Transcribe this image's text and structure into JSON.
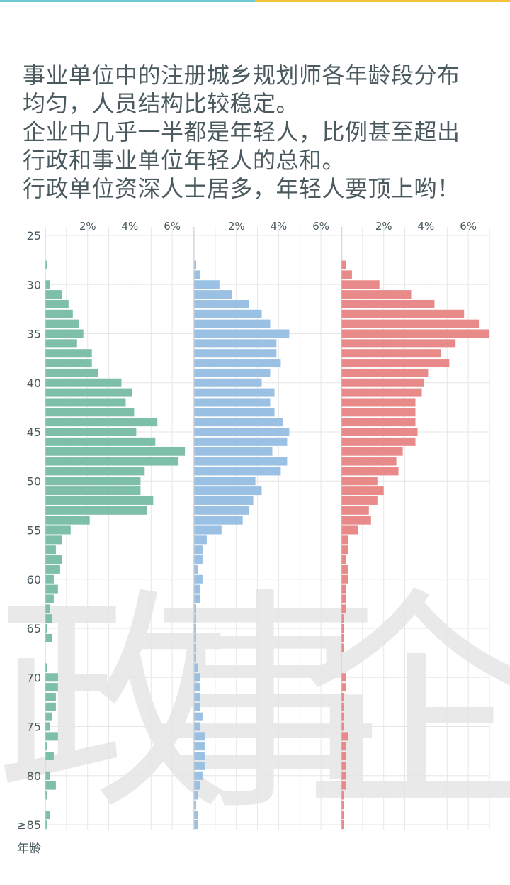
{
  "caption": {
    "lines": [
      "事业单位中的注册城乡规划师各年龄段分布",
      "均匀，人员结构比较稳定。",
      "企业中几乎一半都是年轻人，比例甚至超出",
      "行政和事业单位年轻人的总和。",
      "行政单位资深人士居多，年轻人要顶上哟！"
    ]
  },
  "colors": {
    "top_left": "#6ec9d4",
    "top_right": "#f2c23a",
    "text": "#4a5a5e",
    "grid": "#e6e6e6"
  },
  "chart_data": {
    "type": "bar",
    "orientation": "horizontal",
    "ylabel": "年龄",
    "y_ticks": [
      "25",
      "30",
      "35",
      "40",
      "45",
      "50",
      "55",
      "60",
      "65",
      "70",
      "75",
      "80",
      "≥85"
    ],
    "x_ticks": [
      "2%",
      "4%",
      "6%"
    ],
    "xlim": [
      0,
      7
    ],
    "ages": [
      28,
      29,
      30,
      31,
      32,
      33,
      34,
      35,
      36,
      37,
      38,
      39,
      40,
      41,
      42,
      43,
      44,
      45,
      46,
      47,
      48,
      49,
      50,
      51,
      52,
      53,
      54,
      55,
      56,
      57,
      58,
      59,
      60,
      61,
      62,
      63,
      64,
      65,
      66,
      67,
      68,
      69,
      70,
      71,
      72,
      73,
      74,
      75,
      76,
      77,
      78,
      79,
      80,
      81,
      82,
      83,
      84,
      85
    ],
    "grid": true,
    "watermarks": [
      "政",
      "事",
      "企"
    ],
    "series": [
      {
        "color": "#7dbfa8",
        "values": [
          0.1,
          0.0,
          0.2,
          0.8,
          1.1,
          1.3,
          1.6,
          1.8,
          1.5,
          2.2,
          2.2,
          2.5,
          3.6,
          4.1,
          3.8,
          4.2,
          5.3,
          4.3,
          5.2,
          6.6,
          6.3,
          4.7,
          4.5,
          4.5,
          5.1,
          4.8,
          2.1,
          1.2,
          0.8,
          0.5,
          0.8,
          0.7,
          0.4,
          0.6,
          0.4,
          0.2,
          0.3,
          0.1,
          0.3,
          0.0,
          0.0,
          0.1,
          0.6,
          0.6,
          0.5,
          0.5,
          0.3,
          0.2,
          0.6,
          0.1,
          0.4,
          0.0,
          0.2,
          0.5,
          0.1,
          0.0,
          0.2,
          0.1
        ]
      },
      {
        "color": "#9ac0e3",
        "values": [
          0.1,
          0.3,
          1.2,
          1.8,
          2.6,
          3.2,
          3.6,
          4.5,
          3.9,
          3.9,
          4.1,
          3.6,
          3.2,
          3.8,
          3.6,
          3.8,
          4.2,
          4.5,
          4.4,
          3.7,
          4.4,
          4.1,
          2.9,
          3.2,
          2.8,
          2.6,
          2.3,
          1.3,
          0.6,
          0.4,
          0.4,
          0.2,
          0.4,
          0.3,
          0.3,
          0.1,
          0.1,
          0.1,
          0.1,
          0.1,
          0.1,
          0.2,
          0.3,
          0.3,
          0.3,
          0.3,
          0.4,
          0.3,
          0.5,
          0.5,
          0.5,
          0.5,
          0.4,
          0.3,
          0.2,
          0.1,
          0.2,
          0.2
        ]
      },
      {
        "color": "#e88a8a",
        "values": [
          0.2,
          0.5,
          1.8,
          3.3,
          4.4,
          5.8,
          6.5,
          7.0,
          5.4,
          4.7,
          5.1,
          4.1,
          3.9,
          3.8,
          3.5,
          3.5,
          3.5,
          3.6,
          3.5,
          2.9,
          2.6,
          2.7,
          1.7,
          2.0,
          1.7,
          1.3,
          1.4,
          0.8,
          0.3,
          0.3,
          0.2,
          0.3,
          0.3,
          0.2,
          0.2,
          0.2,
          0.1,
          0.1,
          0.1,
          0.1,
          0.0,
          0.0,
          0.2,
          0.2,
          0.1,
          0.1,
          0.1,
          0.1,
          0.3,
          0.2,
          0.2,
          0.2,
          0.2,
          0.2,
          0.1,
          0.1,
          0.1,
          0.1
        ]
      }
    ]
  }
}
